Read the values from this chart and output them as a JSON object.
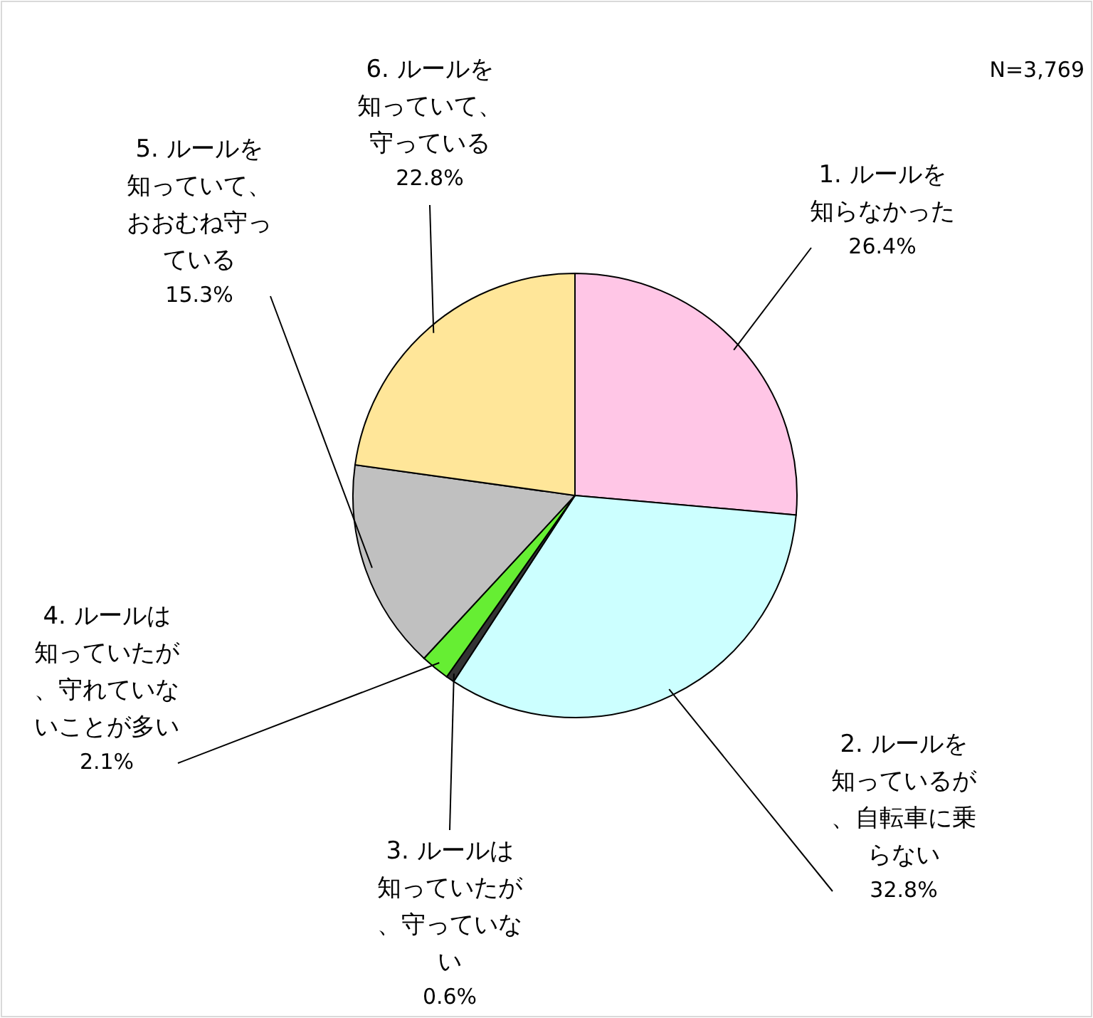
{
  "chart_data": {
    "type": "pie",
    "categories": [
      "1. ルールを知らなかった",
      "2. ルールを知っているが、自転車に乗らない",
      "3. ルールは知っていたが、守っていない",
      "4. ルールは知っていたが、守れていないことが多い",
      "5. ルールを知っていて、おおむね守っている",
      "6. ルールを知っていて、守っている"
    ],
    "values": [
      26.4,
      32.8,
      0.6,
      2.1,
      15.3,
      22.8
    ],
    "colors": [
      "#ffc6e6",
      "#ccffff",
      "#333333",
      "#66ee33",
      "#c0c0c0",
      "#ffe699"
    ],
    "value_labels": [
      "26.4%",
      "32.8%",
      "0.6%",
      "2.1%",
      "15.3%",
      "22.8%"
    ],
    "annotations": [
      "N=3,769"
    ]
  }
}
